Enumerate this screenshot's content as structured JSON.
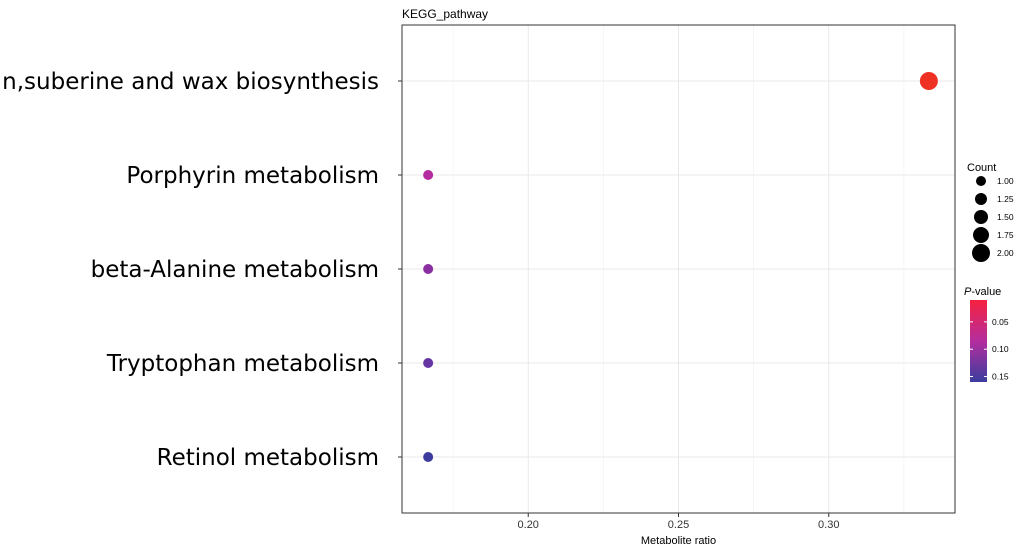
{
  "chart_data": {
    "type": "scatter",
    "title": "KEGG_pathway",
    "xlabel": "Metabolite ratio",
    "ylabel": "",
    "xlim": [
      0.158,
      0.342
    ],
    "xticks": [
      0.2,
      0.25,
      0.3
    ],
    "xtick_labels": [
      "0.20",
      "0.25",
      "0.30"
    ],
    "grid": true,
    "categories": [
      "Cutin,suberine and wax biosynthesis",
      "Porphyrin metabolism",
      "beta-Alanine metabolism",
      "Tryptophan metabolism",
      "Retinol metabolism"
    ],
    "points": [
      {
        "category": "Cutin,suberine and wax biosynthesis",
        "x": 0.3333,
        "count": 2,
        "pvalue": 0.01,
        "color": "#ef3124"
      },
      {
        "category": "Porphyrin metabolism",
        "x": 0.1667,
        "count": 1,
        "pvalue": 0.09,
        "color": "#b52ca0"
      },
      {
        "category": "beta-Alanine metabolism",
        "x": 0.1667,
        "count": 1,
        "pvalue": 0.11,
        "color": "#8a2fa2"
      },
      {
        "category": "Tryptophan metabolism",
        "x": 0.1667,
        "count": 1,
        "pvalue": 0.13,
        "color": "#6535a4"
      },
      {
        "category": "Retinol metabolism",
        "x": 0.1667,
        "count": 1,
        "pvalue": 0.15,
        "color": "#3d3c9e"
      }
    ],
    "size_legend": {
      "title": "Count",
      "entries": [
        {
          "label": "1.00",
          "value": 1.0
        },
        {
          "label": "1.25",
          "value": 1.25
        },
        {
          "label": "1.50",
          "value": 1.5
        },
        {
          "label": "1.75",
          "value": 1.75
        },
        {
          "label": "2.00",
          "value": 2.0
        }
      ]
    },
    "color_legend": {
      "title_italic": "P",
      "title_rest": "-value",
      "range": [
        0.01,
        0.16
      ],
      "ticks": [
        {
          "label": "0.05",
          "value": 0.05
        },
        {
          "label": "0.10",
          "value": 0.1
        },
        {
          "label": "0.15",
          "value": 0.15
        }
      ],
      "low_color": "#f6213f",
      "mid_color": "#b42e9f",
      "high_color": "#3a3d9e"
    }
  }
}
